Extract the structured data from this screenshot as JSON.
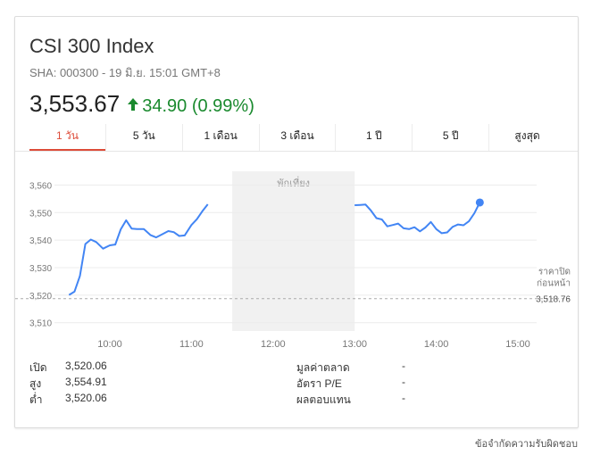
{
  "header": {
    "title": "CSI 300 Index",
    "subtitle": "SHA: 000300 - 19 มิ.ย. 15:01 GMT+8",
    "price": "3,553.67",
    "change": "34.90 (0.99%)",
    "change_color": "#1a8a2e",
    "change_icon": "arrow-up-icon"
  },
  "tabs": [
    {
      "label": "1 วัน",
      "active": true
    },
    {
      "label": "5 วัน",
      "active": false
    },
    {
      "label": "1 เดือน",
      "active": false
    },
    {
      "label": "3 เดือน",
      "active": false
    },
    {
      "label": "1 ปี",
      "active": false
    },
    {
      "label": "5 ปี",
      "active": false
    },
    {
      "label": "สูงสุด",
      "active": false
    }
  ],
  "chart_data": {
    "type": "line",
    "lunch_label": "พักเที่ยง",
    "yticks": [
      "3,510",
      "3,520",
      "3,530",
      "3,540",
      "3,550",
      "3,560"
    ],
    "xticks": [
      "10:00",
      "11:00",
      "12:00",
      "13:00",
      "14:00",
      "15:00"
    ],
    "ylim": [
      3507,
      3565
    ],
    "prev_close_label_1": "ราคาปิด",
    "prev_close_label_2": "ก่อนหน้า",
    "prev_close_value": "3,518.76",
    "prev_close": 3518.76,
    "line_color": "#4285f4",
    "morning": [
      [
        "09:30",
        3520.1
      ],
      [
        "09:34",
        3521.3
      ],
      [
        "09:38",
        3527.0
      ],
      [
        "09:42",
        3538.6
      ],
      [
        "09:46",
        3540.2
      ],
      [
        "09:50",
        3539.3
      ],
      [
        "09:55",
        3536.9
      ],
      [
        "10:00",
        3538.1
      ],
      [
        "10:04",
        3538.4
      ],
      [
        "10:08",
        3543.9
      ],
      [
        "10:12",
        3547.2
      ],
      [
        "10:16",
        3544.2
      ],
      [
        "10:20",
        3544.0
      ],
      [
        "10:25",
        3544.0
      ],
      [
        "10:30",
        3541.8
      ],
      [
        "10:34",
        3541.0
      ],
      [
        "10:38",
        3542.0
      ],
      [
        "10:43",
        3543.3
      ],
      [
        "10:47",
        3542.9
      ],
      [
        "10:51",
        3541.5
      ],
      [
        "10:55",
        3541.7
      ],
      [
        "11:00",
        3545.5
      ],
      [
        "11:04",
        3547.6
      ],
      [
        "11:08",
        3550.5
      ],
      [
        "11:12",
        3553.0
      ]
    ],
    "afternoon": [
      [
        "13:00",
        3552.7
      ],
      [
        "13:04",
        3552.8
      ],
      [
        "13:08",
        3552.9
      ],
      [
        "13:12",
        3550.7
      ],
      [
        "13:16",
        3548.0
      ],
      [
        "13:20",
        3547.5
      ],
      [
        "13:24",
        3545.0
      ],
      [
        "13:28",
        3545.5
      ],
      [
        "13:32",
        3546.0
      ],
      [
        "13:36",
        3544.3
      ],
      [
        "13:40",
        3544.0
      ],
      [
        "13:44",
        3544.7
      ],
      [
        "13:48",
        3543.2
      ],
      [
        "13:52",
        3544.6
      ],
      [
        "13:56",
        3546.6
      ],
      [
        "14:00",
        3544.0
      ],
      [
        "14:04",
        3542.5
      ],
      [
        "14:08",
        3542.8
      ],
      [
        "14:12",
        3544.8
      ],
      [
        "14:16",
        3545.7
      ],
      [
        "14:20",
        3545.4
      ],
      [
        "14:24",
        3546.9
      ],
      [
        "14:28",
        3549.8
      ],
      [
        "14:32",
        3553.67
      ]
    ],
    "last_point": [
      "14:32",
      3553.67
    ]
  },
  "stats": {
    "open_label": "เปิด",
    "open_value": "3,520.06",
    "high_label": "สูง",
    "high_value": "3,554.91",
    "low_label": "ต่ำ",
    "low_value": "3,520.06",
    "mktcap_label": "มูลค่าตลาด",
    "mktcap_value": "-",
    "pe_label": "อัตรา P/E",
    "pe_value": "-",
    "yield_label": "ผลตอบแทน",
    "yield_value": "-"
  },
  "footer": {
    "disclaimer": "ข้อจำกัดความรับผิดชอบ"
  }
}
